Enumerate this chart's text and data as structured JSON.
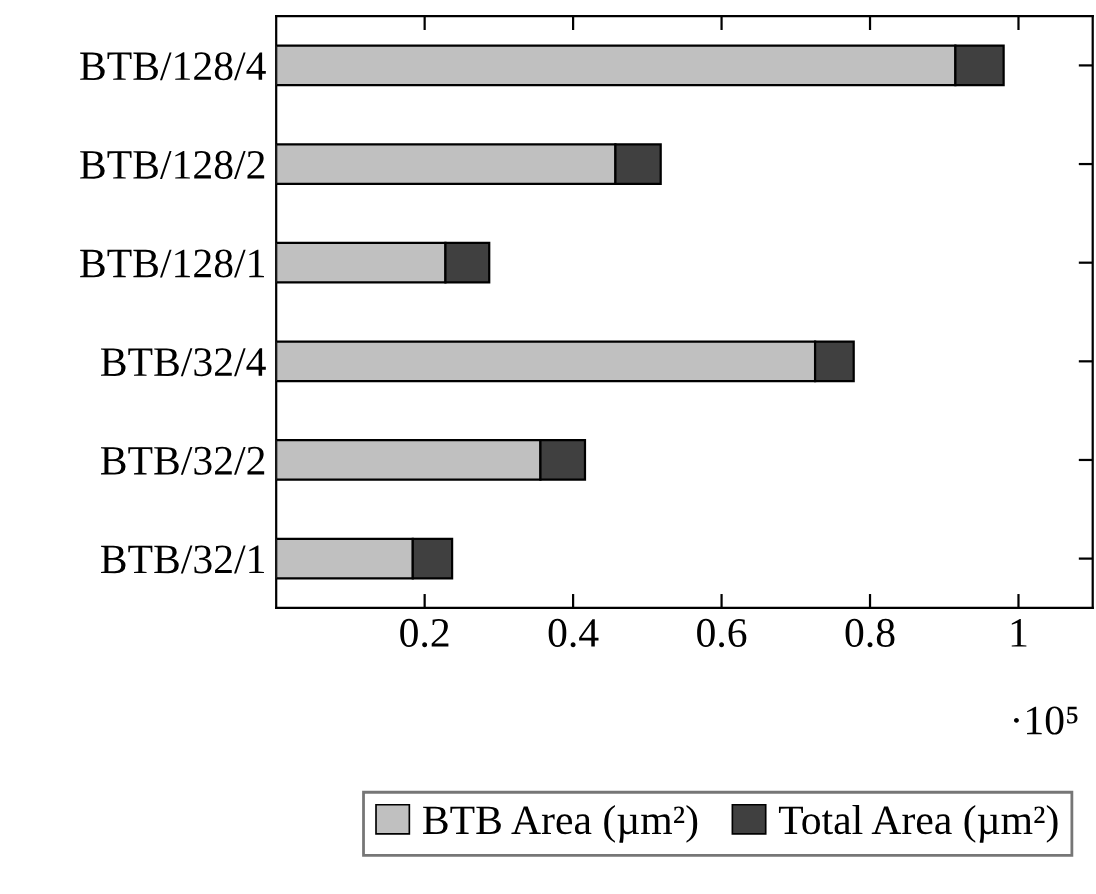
{
  "chart_data": {
    "type": "bar",
    "orientation": "horizontal",
    "stacked": true,
    "categories": [
      "BTB/128/4",
      "BTB/128/2",
      "BTB/128/1",
      "BTB/32/4",
      "BTB/32/2",
      "BTB/32/1"
    ],
    "series": [
      {
        "name": "BTB Area (µm²)",
        "color": "#c0c0c0",
        "values": [
          0.915,
          0.457,
          0.228,
          0.726,
          0.356,
          0.184
        ]
      },
      {
        "name": "Total Area (µm²)",
        "color": "#404040",
        "values": [
          0.065,
          0.061,
          0.059,
          0.052,
          0.06,
          0.053
        ]
      }
    ],
    "xlim": [
      0,
      1.1
    ],
    "xticks": [
      0.2,
      0.4,
      0.6,
      0.8,
      1
    ],
    "annotations": [
      "·10⁵"
    ],
    "legend": "bottom",
    "grid": false
  }
}
